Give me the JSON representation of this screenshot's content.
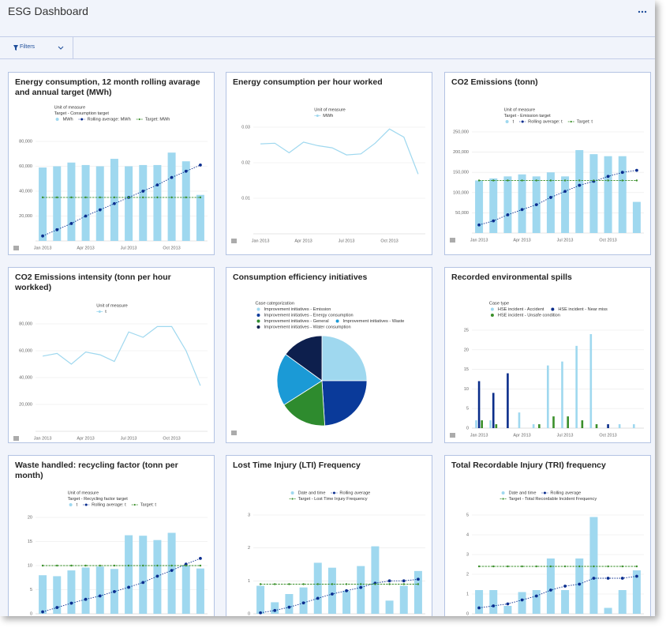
{
  "header": {
    "title": "ESG Dashboard"
  },
  "filters": {
    "label": "Filters"
  },
  "chart_data": [
    {
      "type": "bar",
      "title": "Energy consumption, 12 month rolling avarage and annual target (MWh)",
      "legend_title": [
        "Unit of measure",
        "Target - Consumption target"
      ],
      "categories": [
        "Jan 2013",
        null,
        null,
        "Apr 2013",
        null,
        null,
        "Jul 2013",
        null,
        null,
        "Oct 2013",
        null,
        null
      ],
      "series": [
        {
          "name": "MWh",
          "style": "bar",
          "color": "#9fd8ef",
          "values": [
            59000,
            60000,
            63000,
            61000,
            60000,
            66000,
            60000,
            61000,
            61000,
            71000,
            64000,
            37000
          ]
        },
        {
          "name": "Rolling average: MWh",
          "style": "dotted",
          "color": "#0a2d8f",
          "values": [
            4000,
            9000,
            14000,
            20000,
            25000,
            30000,
            35000,
            40000,
            45000,
            51000,
            56000,
            61000
          ]
        },
        {
          "name": "Target: MWh",
          "style": "dashed",
          "color": "#3a8f2a",
          "values": [
            35000,
            35000,
            35000,
            35000,
            35000,
            35000,
            35000,
            35000,
            35000,
            35000,
            35000,
            35000
          ]
        }
      ],
      "ylim": [
        0,
        80000
      ],
      "yticks": [
        {
          "value": 20000,
          "label": "20,000"
        },
        {
          "value": 40000,
          "label": "40,000"
        },
        {
          "value": 60000,
          "label": "60,000"
        },
        {
          "value": 80000,
          "label": "80,000"
        }
      ],
      "grid": true
    },
    {
      "type": "line",
      "title": "Energy consumption per hour worked",
      "legend_title": [
        "Unit of measure"
      ],
      "categories": [
        "Jan 2013",
        null,
        null,
        "Apr 2013",
        null,
        null,
        "Jul 2013",
        null,
        null,
        "Oct 2013",
        null,
        null
      ],
      "series": [
        {
          "name": "MWh",
          "style": "line",
          "color": "#9fd8ef",
          "values": [
            0.0253,
            0.0255,
            0.0228,
            0.0258,
            0.0248,
            0.0242,
            0.0222,
            0.0225,
            0.0255,
            0.0295,
            0.0272,
            0.0168
          ]
        }
      ],
      "ylim": [
        0,
        0.03
      ],
      "yticks": [
        0.01,
        0.02,
        0.03
      ],
      "grid": true
    },
    {
      "type": "bar",
      "title": "CO2 Emissions (tonn)",
      "legend_title": [
        "Unit of measure",
        "Target - Emission target"
      ],
      "categories": [
        "Jan 2013",
        null,
        null,
        "Apr 2013",
        null,
        null,
        "Jul 2013",
        null,
        null,
        "Oct 2013",
        null,
        null
      ],
      "series": [
        {
          "name": "t",
          "style": "bar",
          "color": "#9fd8ef",
          "values": [
            130000,
            135000,
            140000,
            145000,
            140000,
            150000,
            140000,
            205000,
            195000,
            190000,
            190000,
            77000
          ]
        },
        {
          "name": "Rolling average: t",
          "style": "dotted",
          "color": "#0a2d8f",
          "values": [
            20000,
            30000,
            45000,
            58000,
            70000,
            88000,
            103000,
            118000,
            128000,
            140000,
            150000,
            155000
          ]
        },
        {
          "name": "Target: t",
          "style": "dashed",
          "color": "#3a8f2a",
          "values": [
            130000,
            130000,
            130000,
            130000,
            130000,
            130000,
            130000,
            130000,
            130000,
            130000,
            130000,
            130000
          ]
        }
      ],
      "ylim": [
        0,
        250000
      ],
      "yticks": [
        {
          "value": 50000,
          "label": "50,000"
        },
        {
          "value": 100000,
          "label": "100,000"
        },
        {
          "value": 150000,
          "label": "150,000"
        },
        {
          "value": 200000,
          "label": "200,000"
        },
        {
          "value": 250000,
          "label": "250,000"
        }
      ],
      "grid": true
    },
    {
      "type": "line",
      "title": "CO2 Emissions intensity (tonn per hour workked)",
      "legend_title": [
        "Unit of measure"
      ],
      "categories": [
        "Jan 2013",
        null,
        null,
        "Apr 2013",
        null,
        null,
        "Jul 2013",
        null,
        null,
        "Oct 2013",
        null,
        null
      ],
      "series": [
        {
          "name": "t",
          "style": "line",
          "color": "#9fd8ef",
          "values": [
            56000,
            58000,
            50000,
            59000,
            57000,
            52000,
            74000,
            70000,
            78000,
            78000,
            60000,
            34000
          ]
        }
      ],
      "ylim": [
        0,
        80000
      ],
      "yticks": [
        {
          "value": 20000,
          "label": "20,000"
        },
        {
          "value": 40000,
          "label": "40,000"
        },
        {
          "value": 60000,
          "label": "60,000"
        },
        {
          "value": 80000,
          "label": "80,000"
        }
      ],
      "grid": true
    },
    {
      "type": "pie",
      "title": "Consumption efficiency initiatives",
      "legend_title": [
        "Case categorization"
      ],
      "labels": [
        "Improvement initiatives - Emission",
        "Improvement initiatives - Energy consumption",
        "Improvement initiatives - General",
        "Improvement initiatives - Waste",
        "Improvement initiatives - Water consumption"
      ],
      "values": [
        25,
        24,
        17,
        19,
        15
      ],
      "colors": [
        "#9fd8ef",
        "#0a3a9a",
        "#2e8b2e",
        "#1b9ad6",
        "#0d1f4d"
      ]
    },
    {
      "type": "bar",
      "title": "Recorded environmental spills",
      "legend_title": [
        "Case type"
      ],
      "categories": [
        "Jan 2013",
        null,
        null,
        "Apr 2013",
        null,
        null,
        "Jul 2013",
        null,
        null,
        "Oct 2013",
        null,
        null
      ],
      "series": [
        {
          "name": "HSE incident - Accident",
          "style": "bar",
          "color": "#9fd8ef",
          "values": [
            2,
            2,
            0,
            4,
            1,
            16,
            17,
            21,
            24,
            0,
            1,
            1
          ]
        },
        {
          "name": "HSE incident - Near miss",
          "style": "bar",
          "color": "#0a2d8a",
          "values": [
            12,
            9,
            14,
            0,
            0,
            0,
            0,
            0,
            0,
            1,
            0,
            0
          ]
        },
        {
          "name": "HSE incident - Unsafe condition",
          "style": "bar",
          "color": "#3a8f2a",
          "values": [
            2,
            1,
            0,
            0,
            1,
            3,
            3,
            2,
            1,
            0,
            0,
            0
          ]
        }
      ],
      "ylim": [
        0,
        25
      ],
      "yticks": [
        0,
        5,
        10,
        15,
        20,
        25
      ],
      "grid": true
    },
    {
      "type": "bar",
      "title": "Waste handled: recycling factor (tonn per month)",
      "legend_title": [
        "Unit of measure",
        "Target - Recycling factor target"
      ],
      "categories": [
        null,
        null,
        null,
        null,
        null,
        null,
        null,
        null,
        null,
        null,
        null,
        null
      ],
      "series": [
        {
          "name": "t",
          "style": "bar",
          "color": "#9fd8ef",
          "values": [
            8,
            7.8,
            9,
            9.6,
            9.8,
            9.3,
            16.3,
            16.2,
            15.3,
            16.8,
            10,
            9.4
          ]
        },
        {
          "name": "Rolling average: t",
          "style": "dotted",
          "color": "#0a2d8f",
          "values": [
            0.4,
            1.3,
            2.2,
            3,
            3.7,
            4.6,
            5.5,
            6.5,
            7.8,
            9,
            10.3,
            11.5
          ]
        },
        {
          "name": "Target: t",
          "style": "dashed",
          "color": "#3a8f2a",
          "values": [
            10,
            10,
            10,
            10,
            10,
            10,
            10,
            10,
            10,
            10,
            10,
            10
          ]
        }
      ],
      "ylim": [
        0,
        20
      ],
      "yticks": [
        0,
        5,
        10,
        15,
        20
      ],
      "grid": true
    },
    {
      "type": "bar",
      "title": "Lost Time Injury (LTI) Frequency",
      "categories": [
        null,
        null,
        null,
        null,
        null,
        null,
        null,
        null,
        null,
        null,
        null,
        null
      ],
      "series": [
        {
          "name": "Date and time",
          "style": "bar",
          "color": "#9fd8ef",
          "values": [
            0.85,
            0.35,
            0.6,
            0.8,
            1.55,
            1.4,
            0.7,
            1.45,
            2.05,
            0.4,
            0.85,
            1.3
          ]
        },
        {
          "name": "Rolling average",
          "style": "dotted",
          "color": "#0a2d8f",
          "values": [
            0.03,
            0.1,
            0.2,
            0.33,
            0.47,
            0.6,
            0.7,
            0.8,
            0.93,
            1,
            1,
            1.05
          ]
        },
        {
          "name": "Target - Lost Time Injury Frequency",
          "style": "dashed",
          "color": "#3a8f2a",
          "values": [
            0.9,
            0.9,
            0.9,
            0.9,
            0.9,
            0.9,
            0.9,
            0.9,
            0.9,
            0.9,
            0.9,
            0.9
          ]
        }
      ],
      "ylim": [
        0,
        3
      ],
      "yticks": [
        0,
        1,
        2,
        3
      ],
      "grid": true
    },
    {
      "type": "bar",
      "title": "Total Recordable Injury (TRI) frequency",
      "categories": [
        null,
        null,
        null,
        null,
        null,
        null,
        null,
        null,
        null,
        null,
        null,
        null
      ],
      "series": [
        {
          "name": "Date and time",
          "style": "bar",
          "color": "#9fd8ef",
          "values": [
            1.2,
            1.2,
            0.4,
            1.1,
            1.2,
            2.8,
            1.2,
            2.8,
            4.9,
            0.3,
            1.2,
            2.2
          ]
        },
        {
          "name": "Rolling average",
          "style": "dotted",
          "color": "#0a2d8f",
          "values": [
            0.3,
            0.4,
            0.5,
            0.7,
            0.9,
            1.2,
            1.4,
            1.5,
            1.8,
            1.8,
            1.8,
            1.9
          ]
        },
        {
          "name": "Target - Total Recordable Incident Frequency",
          "style": "dashed",
          "color": "#3a8f2a",
          "values": [
            2.4,
            2.4,
            2.4,
            2.4,
            2.4,
            2.4,
            2.4,
            2.4,
            2.4,
            2.4,
            2.4,
            2.4
          ]
        }
      ],
      "ylim": [
        0,
        5
      ],
      "yticks": [
        0,
        1,
        2,
        3,
        4,
        5
      ],
      "grid": true
    }
  ]
}
